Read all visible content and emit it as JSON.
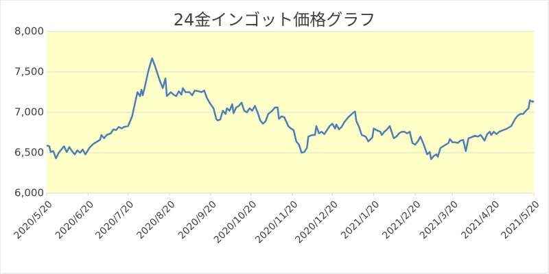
{
  "chart_data": {
    "type": "line",
    "title": "24金インゴット価格グラフ",
    "x": [
      "2020/5/20",
      "2020/5/22",
      "2020/5/23",
      "2020/5/25",
      "2020/5/27",
      "2020/5/29",
      "2020/6/1",
      "2020/6/2",
      "2020/6/4",
      "2020/6/6",
      "2020/6/8",
      "2020/6/10",
      "2020/6/12",
      "2020/6/14",
      "2020/6/16",
      "2020/6/18",
      "2020/6/21",
      "2020/6/24",
      "2020/6/26",
      "2020/6/29",
      "2020/6/30",
      "2020/7/2",
      "2020/7/4",
      "2020/7/7",
      "2020/7/9",
      "2020/7/11",
      "2020/7/13",
      "2020/7/15",
      "2020/7/17",
      "2020/7/20",
      "2020/7/23",
      "2020/7/25",
      "2020/7/27",
      "2020/7/29",
      "2020/7/30",
      "2020/7/31",
      "2020/8/2",
      "2020/8/4",
      "2020/8/5",
      "2020/8/7",
      "2020/8/9",
      "2020/8/11",
      "2020/8/13",
      "2020/8/15",
      "2020/8/17",
      "2020/8/18",
      "2020/8/21",
      "2020/8/23",
      "2020/8/25",
      "2020/8/27",
      "2020/8/29",
      "2020/8/30",
      "2020/9/1",
      "2020/9/4",
      "2020/9/6",
      "2020/9/8",
      "2020/9/11",
      "2020/9/13",
      "2020/9/15",
      "2020/9/17",
      "2020/9/19",
      "2020/9/22",
      "2020/9/24",
      "2020/9/25",
      "2020/9/27",
      "2020/9/29",
      "2020/10/1",
      "2020/10/2",
      "2020/10/4",
      "2020/10/6",
      "2020/10/7",
      "2020/10/9",
      "2020/10/11",
      "2020/10/13",
      "2020/10/15",
      "2020/10/17",
      "2020/10/19",
      "2020/10/21",
      "2020/10/23",
      "2020/10/25",
      "2020/10/27",
      "2020/10/29",
      "2020/10/31",
      "2020/11/2",
      "2020/11/5",
      "2020/11/7",
      "2020/11/9",
      "2020/11/10",
      "2020/11/12",
      "2020/11/14",
      "2020/11/17",
      "2020/11/19",
      "2020/11/21",
      "2020/11/23",
      "2020/11/25",
      "2020/11/27",
      "2020/11/29",
      "2020/12/1",
      "2020/12/2",
      "2020/12/5",
      "2020/12/7",
      "2020/12/8",
      "2020/12/10",
      "2020/12/12",
      "2020/12/14",
      "2020/12/16",
      "2020/12/18",
      "2020/12/20",
      "2020/12/22",
      "2020/12/23",
      "2020/12/25",
      "2020/12/27",
      "2020/12/29",
      "2021/1/1",
      "2021/1/5",
      "2021/1/6",
      "2021/1/7",
      "2021/1/9",
      "2021/1/11",
      "2021/1/14",
      "2021/1/16",
      "2021/1/19",
      "2021/1/20",
      "2021/1/22",
      "2021/1/25",
      "2021/1/26",
      "2021/1/28",
      "2021/1/30",
      "2021/2/1",
      "2021/2/4",
      "2021/2/6",
      "2021/2/8",
      "2021/2/10",
      "2021/2/12",
      "2021/2/14",
      "2021/2/16",
      "2021/2/18",
      "2021/2/20",
      "2021/2/22",
      "2021/2/24",
      "2021/2/26",
      "2021/2/28",
      "2021/3/1",
      "2021/3/3",
      "2021/3/4",
      "2021/3/6",
      "2021/3/8",
      "2021/3/9",
      "2021/3/11",
      "2021/3/13",
      "2021/3/15",
      "2021/3/17",
      "2021/3/18",
      "2021/3/20",
      "2021/3/22",
      "2021/3/24",
      "2021/3/26",
      "2021/3/28",
      "2021/3/30",
      "2021/4/1",
      "2021/4/3",
      "2021/4/6",
      "2021/4/8",
      "2021/4/10",
      "2021/4/11",
      "2021/4/13",
      "2021/4/15",
      "2021/4/17",
      "2021/4/18",
      "2021/4/20",
      "2021/4/22",
      "2021/4/24",
      "2021/4/27",
      "2021/4/30",
      "2021/5/3",
      "2021/5/6",
      "2021/5/8",
      "2021/5/10",
      "2021/5/12",
      "2021/5/14",
      "2021/5/16",
      "2021/5/17",
      "2021/5/19",
      "2021/5/20"
    ],
    "series": [
      {
        "color": "#4a7ebb",
        "values": [
          6590,
          6580,
          6510,
          6520,
          6430,
          6500,
          6560,
          6580,
          6510,
          6570,
          6520,
          6480,
          6530,
          6500,
          6540,
          6480,
          6560,
          6610,
          6630,
          6660,
          6720,
          6680,
          6720,
          6740,
          6790,
          6780,
          6820,
          6800,
          6820,
          6830,
          6950,
          7100,
          7250,
          7200,
          7280,
          7210,
          7350,
          7500,
          7560,
          7670,
          7580,
          7480,
          7380,
          7300,
          7420,
          7200,
          7250,
          7220,
          7200,
          7260,
          7220,
          7300,
          7250,
          7250,
          7210,
          7270,
          7260,
          7250,
          7270,
          7180,
          7120,
          7050,
          6920,
          6900,
          6910,
          7020,
          6980,
          7050,
          7020,
          7100,
          6990,
          7060,
          7080,
          7120,
          7020,
          7000,
          7050,
          7020,
          7080,
          7000,
          6900,
          6860,
          6890,
          6980,
          7020,
          7060,
          7060,
          6920,
          6950,
          6940,
          6830,
          6800,
          6780,
          6640,
          6600,
          6500,
          6510,
          6560,
          6700,
          6720,
          6720,
          6830,
          6740,
          6760,
          6730,
          6780,
          6830,
          6860,
          6800,
          6850,
          6790,
          6820,
          6880,
          6940,
          7000,
          7010,
          6890,
          6820,
          6720,
          6700,
          6640,
          6690,
          6800,
          6780,
          6760,
          6720,
          6760,
          6790,
          6830,
          6680,
          6700,
          6740,
          6760,
          6760,
          6740,
          6760,
          6620,
          6600,
          6640,
          6700,
          6620,
          6530,
          6480,
          6510,
          6420,
          6460,
          6480,
          6450,
          6560,
          6580,
          6600,
          6620,
          6670,
          6630,
          6630,
          6620,
          6650,
          6660,
          6520,
          6680,
          6690,
          6710,
          6700,
          6720,
          6700,
          6650,
          6730,
          6760,
          6720,
          6760,
          6730,
          6760,
          6780,
          6800,
          6830,
          6920,
          6960,
          6980,
          6980,
          7020,
          7050,
          7150,
          7130,
          7140
        ]
      }
    ],
    "xlim": [
      "2020/5/20",
      "2021/5/20"
    ],
    "xticks": [
      "2020/5/20",
      "2020/6/20",
      "2020/7/20",
      "2020/8/20",
      "2020/9/20",
      "2020/10/20",
      "2020/11/20",
      "2020/12/20",
      "2021/1/20",
      "2021/2/20",
      "2021/3/20",
      "2021/4/20",
      "2021/5/20"
    ],
    "ylim": [
      6000,
      8000
    ],
    "yticks": [
      {
        "value": 6000,
        "label": "6,000"
      },
      {
        "value": 6500,
        "label": "6,500"
      },
      {
        "value": 7000,
        "label": "7,000"
      },
      {
        "value": 7500,
        "label": "7,500"
      },
      {
        "value": 8000,
        "label": "8,000"
      }
    ],
    "grid": true,
    "background": "#ffffc8"
  }
}
